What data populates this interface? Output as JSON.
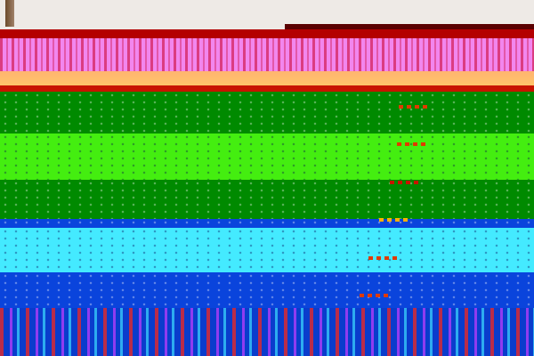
{
  "palette": {
    "top": "#eeeae6",
    "red": "#b40000",
    "pink": "#f286ee",
    "orange": "#ffc46a",
    "dark_green": "#008a00",
    "bright_green": "#44ee10",
    "blue": "#0a44dc",
    "cyan": "#44eaff",
    "marker": "#e03a00"
  }
}
